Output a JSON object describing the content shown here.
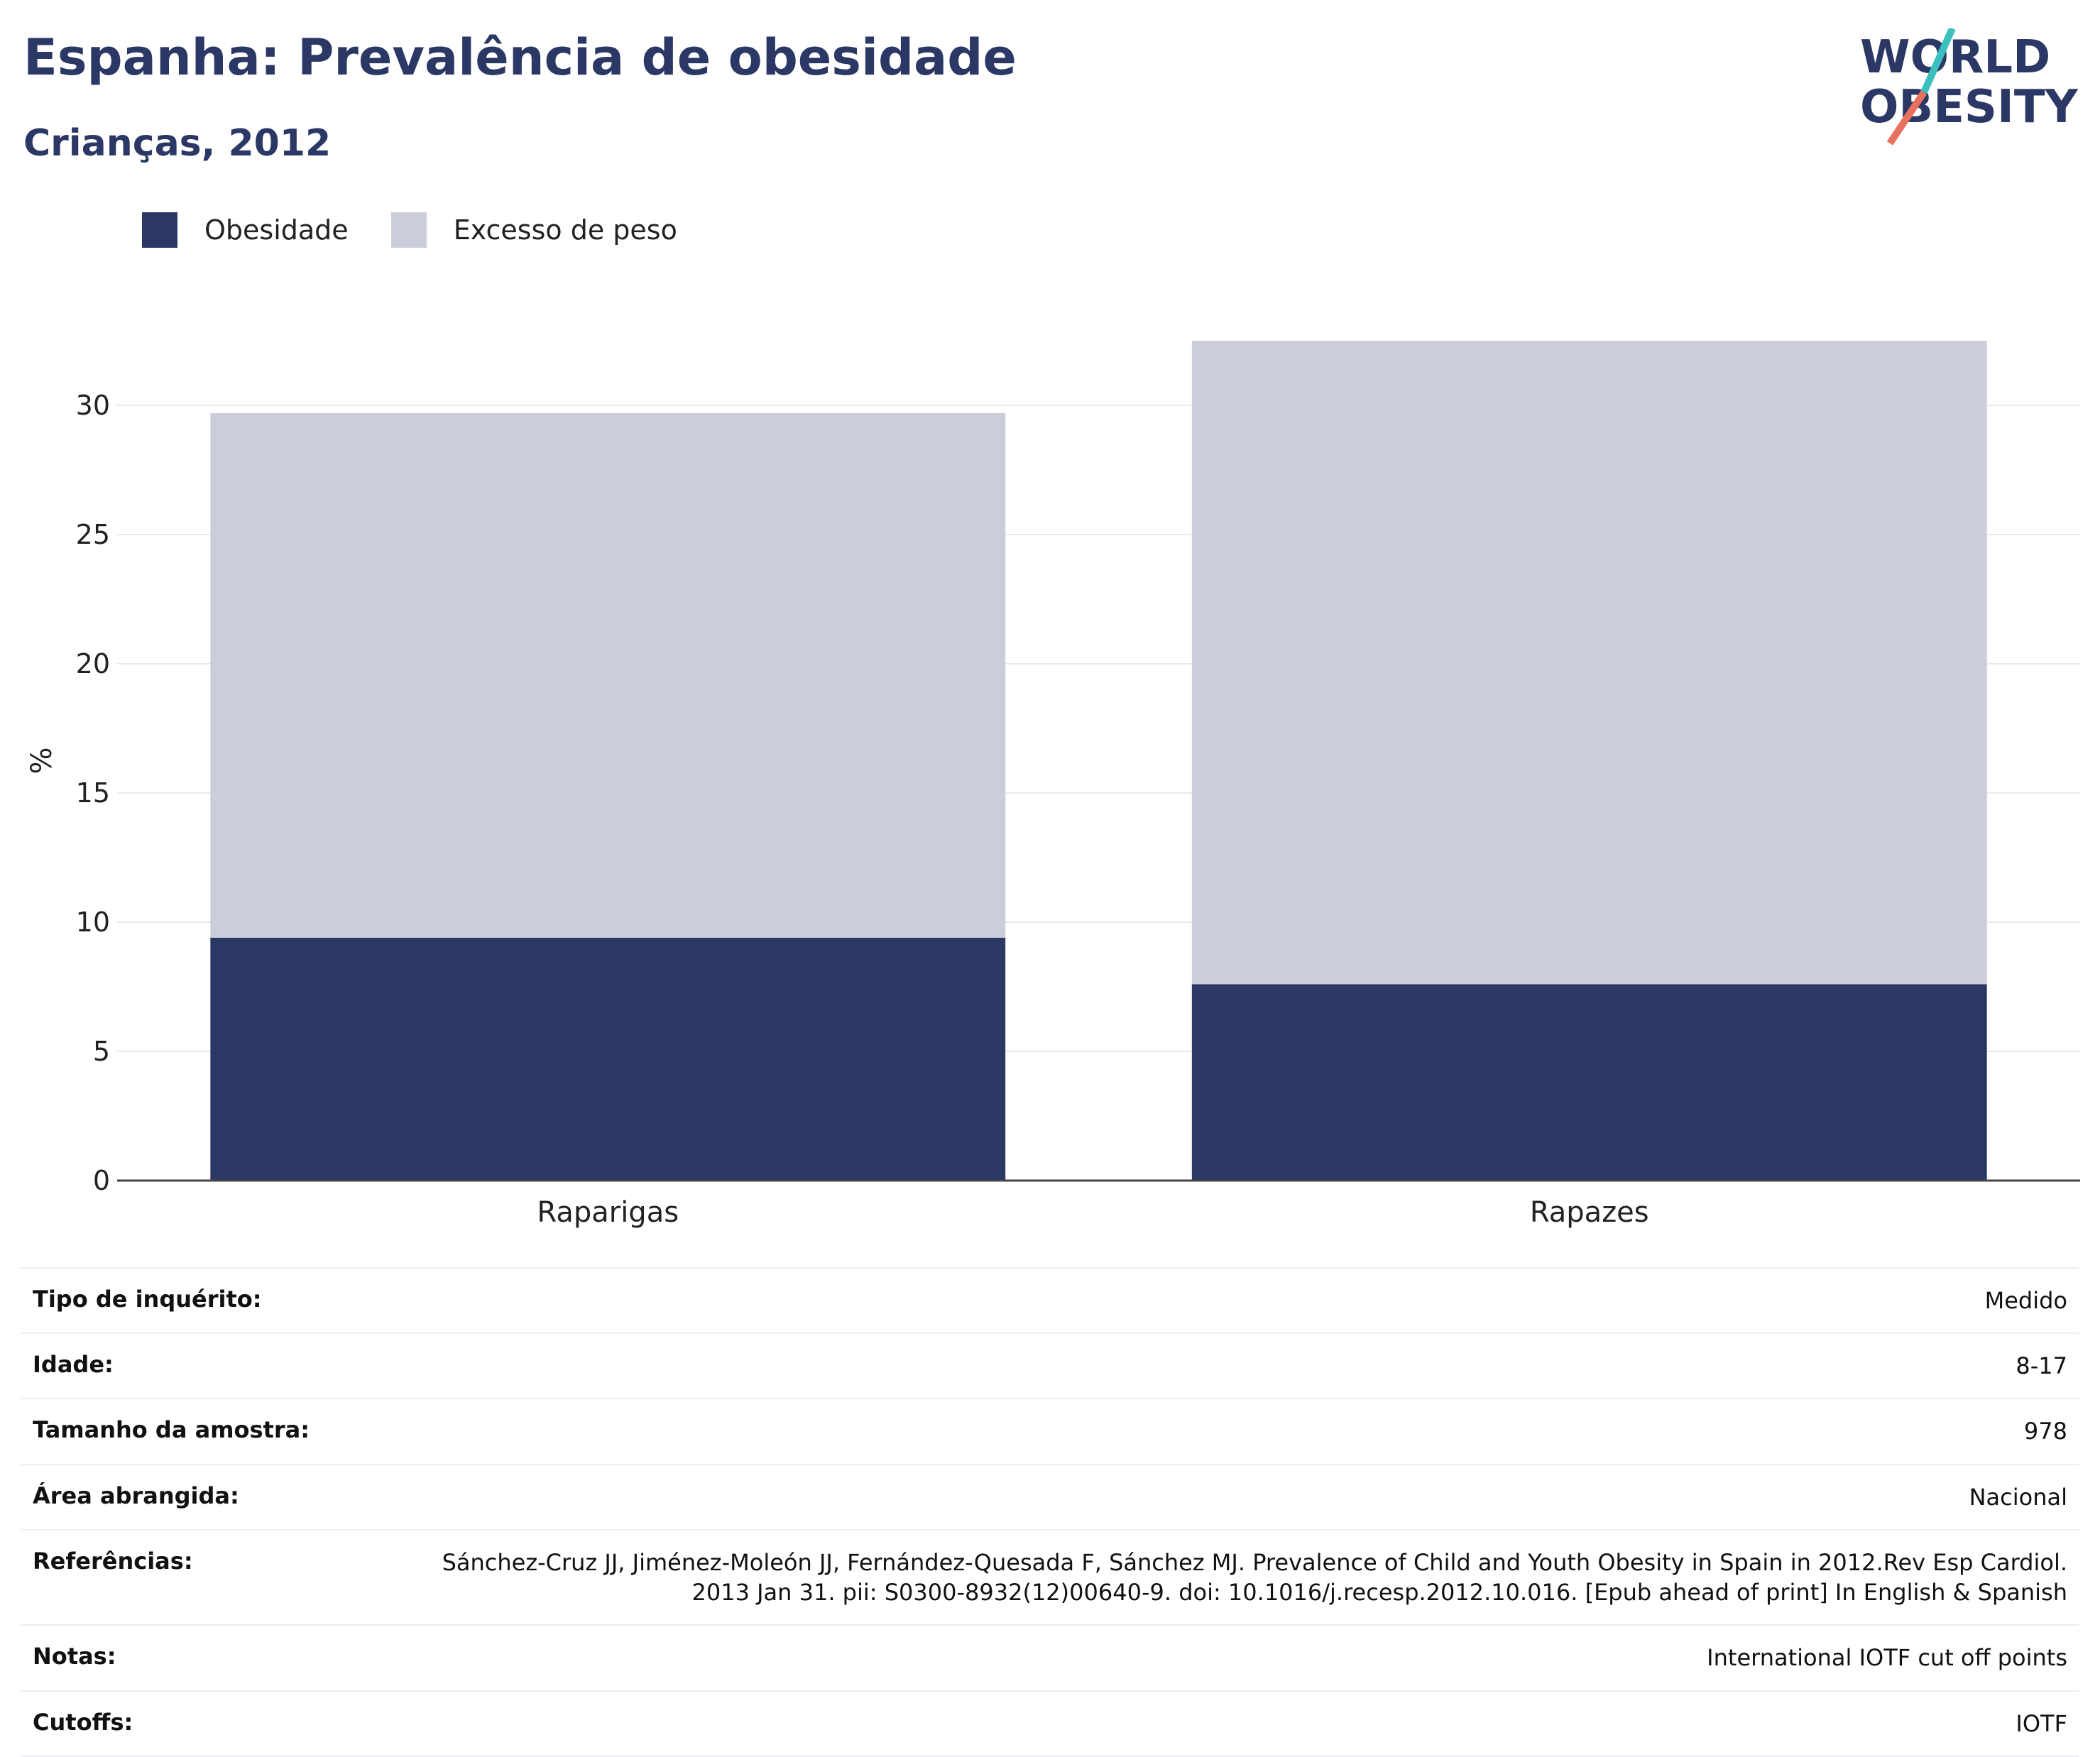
{
  "title": "Espanha: Prevalência de obesidade",
  "subtitle": "Crianças, 2012",
  "logo": {
    "line1": "WORLD",
    "line2": "OBESITY"
  },
  "colors": {
    "obesity": "#2b3764",
    "overweight": "#cbcdd8",
    "title": "#2b3764",
    "logo_teal": "#3bbfbf",
    "logo_coral": "#e8705f"
  },
  "chart_data": {
    "type": "bar",
    "stacked": true,
    "categories": [
      "Raparigas",
      "Rapazes"
    ],
    "series": [
      {
        "name": "Obesidade",
        "values": [
          9.4,
          7.6
        ],
        "color": "#2b3764"
      },
      {
        "name": "Excesso de peso",
        "values": [
          20.3,
          24.9
        ],
        "color": "#cbcdd8"
      }
    ],
    "ylabel": "%",
    "ylim": [
      0,
      32.5
    ],
    "yticks": [
      0,
      5,
      10,
      15,
      20,
      25,
      30
    ],
    "grid": true,
    "legend_position": "top-left"
  },
  "meta": [
    {
      "label": "Tipo de inquérito:",
      "value": "Medido"
    },
    {
      "label": "Idade:",
      "value": "8-17"
    },
    {
      "label": "Tamanho da amostra:",
      "value": "978"
    },
    {
      "label": "Área abrangida:",
      "value": "Nacional"
    },
    {
      "label": "Referências:",
      "value": "Sánchez-Cruz JJ, Jiménez-Moleón JJ, Fernández-Quesada F, Sánchez MJ. Prevalence of Child and Youth Obesity in Spain in 2012.Rev Esp Cardiol. 2013 Jan 31. pii: S0300-8932(12)00640-9. doi: 10.1016/j.recesp.2012.10.016. [Epub ahead of print] In English & Spanish"
    },
    {
      "label": "Notas:",
      "value": "International IOTF cut off points"
    },
    {
      "label": "Cutoffs:",
      "value": "IOTF"
    }
  ]
}
